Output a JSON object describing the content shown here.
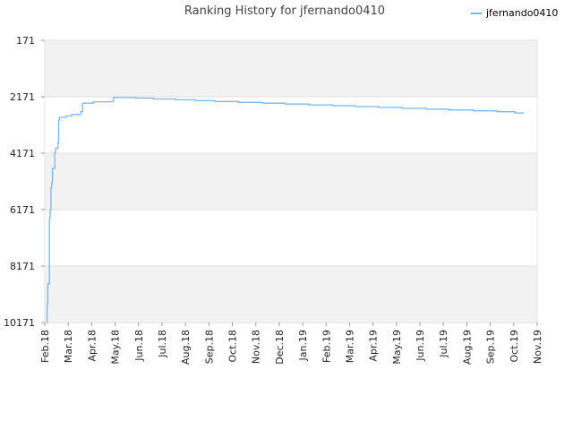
{
  "chart_data": {
    "type": "line",
    "title": "Ranking History for jfernando0410",
    "xlabel": "",
    "ylabel": "",
    "y_inverted": true,
    "ylim": [
      10171,
      171
    ],
    "y_ticks": [
      171,
      2171,
      4171,
      6171,
      8171,
      10171
    ],
    "y_tick_labels": [
      "171",
      "2171",
      "4171",
      "6171",
      "8171",
      "10171"
    ],
    "x_ticks": [
      "Feb.18",
      "Mar.18",
      "Apr.18",
      "May.18",
      "Jun.18",
      "Jul.18",
      "Aug.18",
      "Sep.18",
      "Oct.18",
      "Nov.18",
      "Dec.18",
      "Jan.19",
      "Feb.19",
      "Mar.19",
      "Apr.19",
      "May.19",
      "Jun.19",
      "Jul.19",
      "Aug.19",
      "Sep.19",
      "Oct.19",
      "Nov.19"
    ],
    "grid": true,
    "band_colors": [
      "#f2f2f2",
      "#ffffff"
    ],
    "legend": {
      "position": "top-right"
    },
    "series": [
      {
        "name": "jfernando0410",
        "color": "#7cb5ec",
        "step": true,
        "points": [
          [
            "2018-02-03",
            10171
          ],
          [
            "2018-02-04",
            9500
          ],
          [
            "2018-02-05",
            8800
          ],
          [
            "2018-02-07",
            6500
          ],
          [
            "2018-02-08",
            6200
          ],
          [
            "2018-02-09",
            5400
          ],
          [
            "2018-02-10",
            5200
          ],
          [
            "2018-02-11",
            4700
          ],
          [
            "2018-02-14",
            4150
          ],
          [
            "2018-02-15",
            4000
          ],
          [
            "2018-02-18",
            3800
          ],
          [
            "2018-02-19",
            3000
          ],
          [
            "2018-02-20",
            2900
          ],
          [
            "2018-03-01",
            2850
          ],
          [
            "2018-03-08",
            2800
          ],
          [
            "2018-03-20",
            2700
          ],
          [
            "2018-03-22",
            2400
          ],
          [
            "2018-04-05",
            2350
          ],
          [
            "2018-05-01",
            2200
          ],
          [
            "2018-05-30",
            2220
          ],
          [
            "2018-06-22",
            2250
          ],
          [
            "2018-07-20",
            2280
          ],
          [
            "2018-08-15",
            2310
          ],
          [
            "2018-09-10",
            2340
          ],
          [
            "2018-10-10",
            2370
          ],
          [
            "2018-11-10",
            2400
          ],
          [
            "2018-12-10",
            2430
          ],
          [
            "2019-01-10",
            2460
          ],
          [
            "2019-02-10",
            2490
          ],
          [
            "2019-03-10",
            2520
          ],
          [
            "2019-04-10",
            2550
          ],
          [
            "2019-05-10",
            2580
          ],
          [
            "2019-06-10",
            2610
          ],
          [
            "2019-07-10",
            2640
          ],
          [
            "2019-08-10",
            2670
          ],
          [
            "2019-09-10",
            2700
          ],
          [
            "2019-10-03",
            2750
          ],
          [
            "2019-10-15",
            2750
          ]
        ]
      }
    ]
  }
}
